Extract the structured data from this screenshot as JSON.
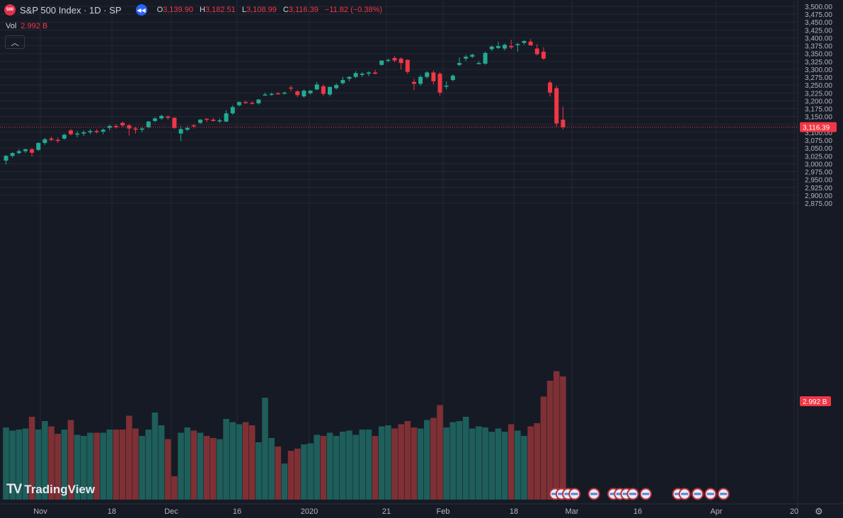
{
  "header": {
    "logo_text": "500",
    "title": "S&P 500 Index · 1D · SP",
    "o_label": "O",
    "o_value": "3,139.90",
    "h_label": "H",
    "h_value": "3,182.51",
    "l_label": "L",
    "l_value": "3,108.99",
    "c_label": "C",
    "c_value": "3,116.39",
    "change": "−11.82 (−0.38%)"
  },
  "volume_label": "Vol",
  "volume_value": "2.992 B",
  "collapse_icon": "chevron-up-icon",
  "brand": {
    "mark": "TV",
    "name": "TradingView"
  },
  "colors": {
    "up": "#22ab94",
    "down": "#f23645",
    "up_vol": "#1e5e5b",
    "down_vol": "#7f3035",
    "bg": "#161a25",
    "grid": "#232834",
    "axis_text": "#b2b5be"
  },
  "chart_data": {
    "type": "candlestick",
    "y_axis": {
      "ticks": [
        "3,500.00",
        "3,475.00",
        "3,450.00",
        "3,425.00",
        "3,400.00",
        "3,375.00",
        "3,350.00",
        "3,325.00",
        "3,300.00",
        "3,275.00",
        "3,250.00",
        "3,225.00",
        "3,200.00",
        "3,175.00",
        "3,150.00",
        "3,125.00",
        "3,100.00",
        "3,075.00",
        "3,050.00",
        "3,025.00",
        "3,000.00",
        "2,975.00",
        "2,950.00",
        "2,925.00",
        "2,900.00",
        "2,875.00"
      ],
      "range": [
        2870,
        3505
      ]
    },
    "x_axis": {
      "ticks": [
        "Nov",
        "18",
        "Dec",
        "16",
        "2020",
        "21",
        "Feb",
        "18",
        "Mar",
        "16",
        "Apr",
        "20"
      ]
    },
    "last_price_label": "3,116.39",
    "last_price": 3116.39,
    "volume_badge": "2.992 B",
    "candles": [
      [
        3010,
        3028,
        2998,
        3025,
        68
      ],
      [
        3025,
        3036,
        3020,
        3034,
        65
      ],
      [
        3034,
        3046,
        3030,
        3040,
        66
      ],
      [
        3040,
        3048,
        3034,
        3046,
        67
      ],
      [
        3046,
        3050,
        3023,
        3035,
        78
      ],
      [
        3044,
        3068,
        3040,
        3066,
        66
      ],
      [
        3066,
        3082,
        3060,
        3078,
        74
      ],
      [
        3080,
        3086,
        3072,
        3076,
        69
      ],
      [
        3076,
        3084,
        3066,
        3074,
        62
      ],
      [
        3080,
        3096,
        3076,
        3092,
        66
      ],
      [
        3106,
        3110,
        3090,
        3094,
        75
      ],
      [
        3094,
        3104,
        3084,
        3096,
        61
      ],
      [
        3096,
        3106,
        3088,
        3100,
        60
      ],
      [
        3100,
        3110,
        3094,
        3104,
        63
      ],
      [
        3104,
        3110,
        3096,
        3102,
        63
      ],
      [
        3102,
        3112,
        3094,
        3108,
        63
      ],
      [
        3114,
        3124,
        3106,
        3120,
        66
      ],
      [
        3120,
        3126,
        3112,
        3118,
        66
      ],
      [
        3130,
        3134,
        3116,
        3122,
        66
      ],
      [
        3122,
        3126,
        3090,
        3112,
        79
      ],
      [
        3112,
        3118,
        3096,
        3108,
        67
      ],
      [
        3108,
        3116,
        3100,
        3112,
        60
      ],
      [
        3116,
        3136,
        3112,
        3134,
        66
      ],
      [
        3136,
        3148,
        3132,
        3144,
        82
      ],
      [
        3144,
        3156,
        3140,
        3152,
        70
      ],
      [
        3150,
        3154,
        3140,
        3146,
        57
      ],
      [
        3146,
        3148,
        3110,
        3114,
        22
      ],
      [
        3096,
        3120,
        3072,
        3110,
        63
      ],
      [
        3108,
        3120,
        3104,
        3114,
        68
      ],
      [
        3122,
        3126,
        3112,
        3120,
        65
      ],
      [
        3130,
        3142,
        3126,
        3140,
        63
      ],
      [
        3143,
        3144,
        3132,
        3140,
        60
      ],
      [
        3140,
        3146,
        3134,
        3136,
        58
      ],
      [
        3136,
        3144,
        3130,
        3138,
        57
      ],
      [
        3134,
        3170,
        3132,
        3160,
        76
      ],
      [
        3160,
        3186,
        3156,
        3180,
        73
      ],
      [
        3186,
        3198,
        3182,
        3196,
        71
      ],
      [
        3196,
        3200,
        3190,
        3194,
        73
      ],
      [
        3194,
        3198,
        3188,
        3192,
        70
      ],
      [
        3192,
        3206,
        3188,
        3204,
        54
      ],
      [
        3218,
        3226,
        3216,
        3220,
        96
      ],
      [
        3221,
        3226,
        3216,
        3222,
        58
      ],
      [
        3224,
        3228,
        3220,
        3223,
        50
      ],
      [
        3224,
        3230,
        3220,
        3226,
        34
      ],
      [
        3242,
        3248,
        3230,
        3240,
        46
      ],
      [
        3230,
        3234,
        3212,
        3218,
        48
      ],
      [
        3214,
        3236,
        3210,
        3232,
        52
      ],
      [
        3224,
        3234,
        3220,
        3232,
        53
      ],
      [
        3236,
        3260,
        3234,
        3252,
        61
      ],
      [
        3246,
        3252,
        3216,
        3222,
        60
      ],
      [
        3220,
        3246,
        3214,
        3244,
        63
      ],
      [
        3240,
        3256,
        3236,
        3250,
        60
      ],
      [
        3256,
        3276,
        3252,
        3266,
        64
      ],
      [
        3270,
        3278,
        3262,
        3276,
        65
      ],
      [
        3276,
        3294,
        3272,
        3288,
        61
      ],
      [
        3282,
        3292,
        3276,
        3286,
        66
      ],
      [
        3286,
        3294,
        3278,
        3290,
        66
      ],
      [
        3290,
        3298,
        3284,
        3286,
        60
      ],
      [
        3314,
        3328,
        3312,
        3328,
        69
      ],
      [
        3328,
        3334,
        3322,
        3330,
        70
      ],
      [
        3336,
        3342,
        3322,
        3328,
        67
      ],
      [
        3334,
        3338,
        3300,
        3320,
        71
      ],
      [
        3330,
        3332,
        3286,
        3292,
        74
      ],
      [
        3260,
        3270,
        3234,
        3254,
        68
      ],
      [
        3254,
        3282,
        3248,
        3276,
        67
      ],
      [
        3276,
        3294,
        3270,
        3290,
        75
      ],
      [
        3290,
        3296,
        3252,
        3262,
        77
      ],
      [
        3286,
        3292,
        3216,
        3226,
        89
      ],
      [
        3246,
        3262,
        3236,
        3248,
        68
      ],
      [
        3266,
        3284,
        3262,
        3280,
        73
      ],
      [
        3314,
        3338,
        3310,
        3320,
        74
      ],
      [
        3334,
        3346,
        3326,
        3340,
        78
      ],
      [
        3340,
        3350,
        3336,
        3346,
        67
      ],
      [
        3320,
        3326,
        3316,
        3320,
        69
      ],
      [
        3318,
        3356,
        3314,
        3352,
        68
      ],
      [
        3364,
        3376,
        3358,
        3372,
        64
      ],
      [
        3368,
        3388,
        3364,
        3374,
        67
      ],
      [
        3366,
        3382,
        3360,
        3378,
        64
      ],
      [
        3374,
        3394,
        3364,
        3370,
        71
      ],
      [
        3378,
        3384,
        3356,
        3380,
        65
      ],
      [
        3384,
        3392,
        3378,
        3390,
        60
      ],
      [
        3388,
        3396,
        3376,
        3376,
        69
      ],
      [
        3366,
        3380,
        3344,
        3348,
        72
      ],
      [
        3356,
        3370,
        3330,
        3334,
        97
      ],
      [
        3258,
        3264,
        3214,
        3226,
        112
      ],
      [
        3240,
        3248,
        3118,
        3128,
        121
      ],
      [
        3140,
        3182,
        3109,
        3116,
        116
      ]
    ],
    "events": [
      25,
      26,
      27,
      28,
      31,
      34,
      34,
      35,
      36,
      37,
      39,
      44,
      45,
      47,
      47,
      47,
      49,
      51
    ]
  }
}
